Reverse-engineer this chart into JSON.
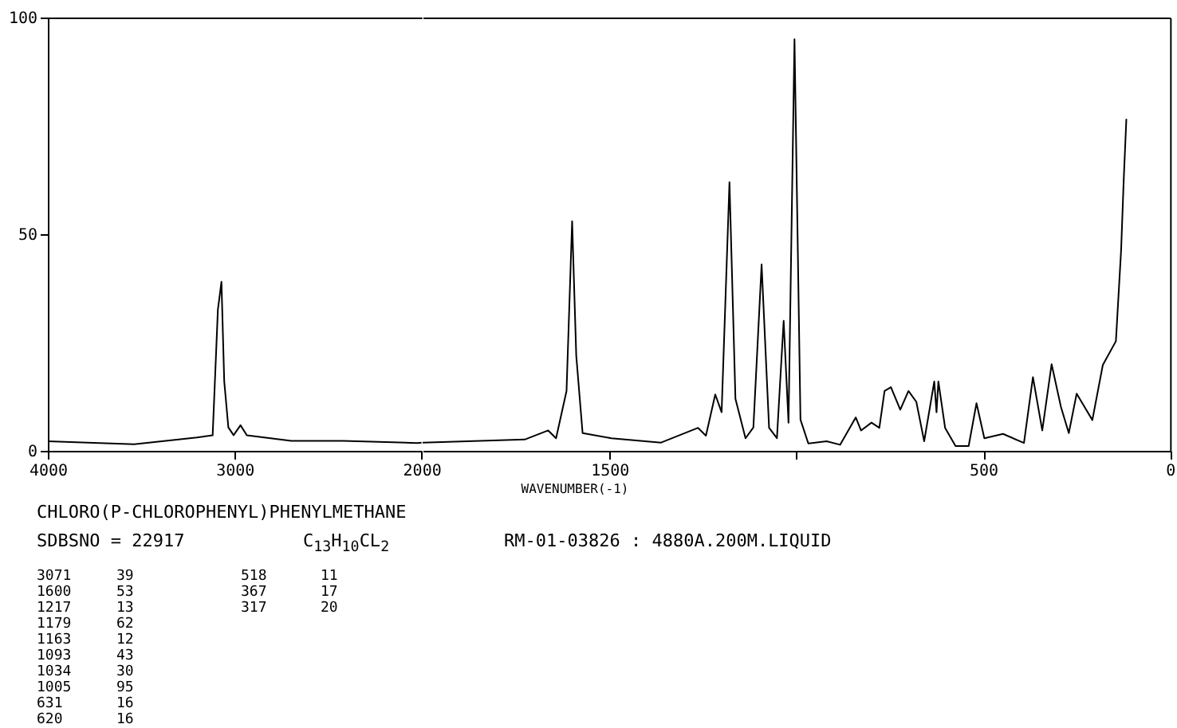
{
  "chart_data": [
    {
      "type": "line",
      "x": [
        4000,
        3538,
        3202,
        3118,
        3090,
        3071,
        3056,
        3034,
        3006,
        2969,
        2935,
        2697,
        2420,
        2025,
        2000
      ],
      "series": [
        {
          "color": "#000000",
          "values": [
            2.2,
            1.5,
            3.1,
            3.6,
            32.6,
            39,
            16,
            5.4,
            3.6,
            5.9,
            3.6,
            2.3,
            2.3,
            1.8,
            1.9
          ]
        }
      ],
      "xlim": [
        4000,
        2000
      ],
      "xticks": [
        4000,
        3000,
        2000
      ],
      "ylim": [
        0,
        100
      ],
      "yticks": [
        0,
        50,
        100
      ],
      "grid": false,
      "line_style": "solid"
    },
    {
      "type": "line",
      "xlabel": "WAVENUMBER(-1)",
      "x": [
        2000,
        1727,
        1664,
        1643,
        1615,
        1600,
        1589,
        1572,
        1495,
        1362,
        1263,
        1242,
        1217,
        1200,
        1179,
        1163,
        1136,
        1115,
        1093,
        1073,
        1052,
        1034,
        1021,
        1005,
        989,
        968,
        919,
        883,
        841,
        827,
        799,
        778,
        764,
        747,
        722,
        700,
        679,
        658,
        631,
        625,
        620,
        602,
        574,
        539,
        518,
        497,
        447,
        391,
        367,
        342,
        317,
        292,
        271,
        250,
        208,
        180,
        145,
        131,
        124,
        117
      ],
      "series": [
        {
          "color": "#000000",
          "values": [
            1.9,
            2.6,
            4.7,
            2.9,
            13.8,
            53,
            22,
            4.1,
            2.9,
            1.9,
            5.3,
            3.5,
            13,
            8.9,
            62,
            12,
            2.9,
            5.4,
            43,
            5.3,
            2.9,
            30,
            6.5,
            95,
            7.2,
            1.7,
            2.2,
            1.4,
            7.7,
            4.7,
            6.5,
            5.3,
            13.8,
            14.7,
            9.5,
            13.8,
            11.3,
            2.2,
            16,
            8.9,
            16,
            5.3,
            1.1,
            1.1,
            11,
            2.9,
            3.9,
            1.8,
            17,
            4.7,
            20,
            10.1,
            4.1,
            13.2,
            7.1,
            19.8,
            25.3,
            46.4,
            62.7,
            76.6
          ]
        }
      ],
      "xlim": [
        2000,
        0
      ],
      "xticks": [
        1500,
        {
          "value": 1000,
          "label": null
        },
        500,
        0
      ],
      "ylim": [
        0,
        100
      ],
      "yticks": [
        0,
        50,
        100
      ],
      "tick_labels": "x",
      "grid": false,
      "line_style": "solid",
      "annotations": [
        "CHLORO(P-CHLOROPHENYL)PHENYLMETHANE",
        "SDBSNO = 22917",
        "C$_{13}$H$_{10}$CL$_{2}$",
        "RM-01-03826 : 4880A.200M.LIQUID",
        "3071",
        "39",
        "1600",
        "53",
        "1217",
        "13",
        "1179",
        "62",
        "1163",
        "12",
        "1093",
        "43",
        "1034",
        "30",
        "1005",
        "95",
        "631",
        "16",
        "620",
        "16",
        "518",
        "11",
        "367",
        "17",
        "317",
        "20"
      ]
    }
  ]
}
